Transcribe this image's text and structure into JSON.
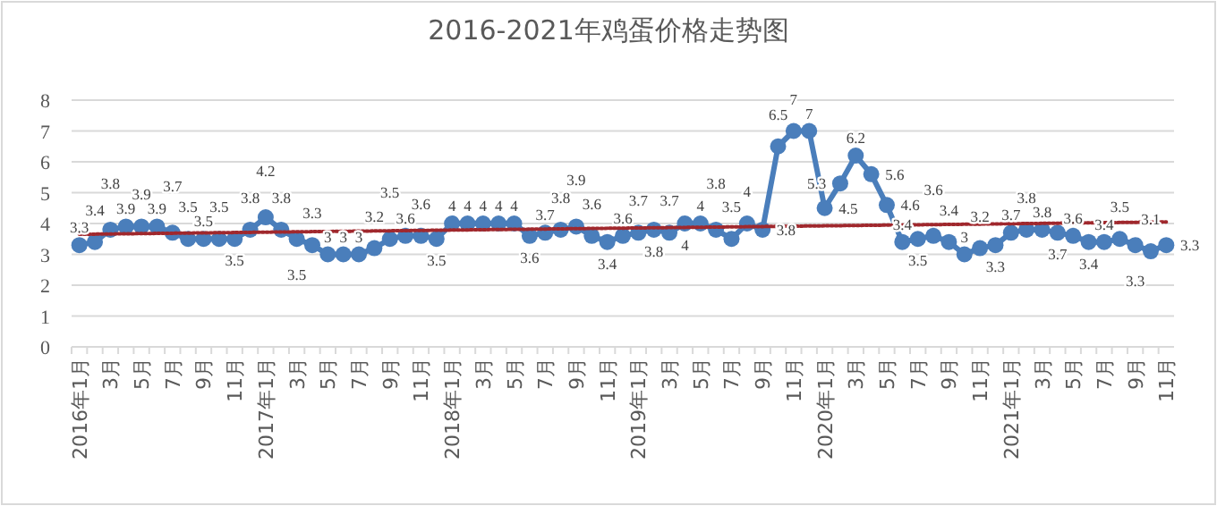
{
  "chart_data": {
    "type": "line",
    "title": "2016-2021年鸡蛋价格走势图",
    "categories": [
      "2016年1月",
      null,
      "3月",
      null,
      "5月",
      null,
      "7月",
      null,
      "9月",
      null,
      "11月",
      null,
      "2017年1月",
      null,
      "3月",
      null,
      "5月",
      null,
      "7月",
      null,
      "9月",
      null,
      "11月",
      null,
      "2018年1月",
      null,
      "3月",
      null,
      "5月",
      null,
      "7月",
      null,
      "9月",
      null,
      "11月",
      null,
      "2019年1月",
      null,
      "3月",
      null,
      "5月",
      null,
      "7月",
      null,
      "9月",
      null,
      "11月",
      null,
      "2020年1月",
      null,
      "3月",
      null,
      "5月",
      null,
      "7月",
      null,
      "9月",
      null,
      "11月",
      null,
      "2021年1月",
      null,
      "3月",
      null,
      "5月",
      null,
      "7月",
      null,
      "9月",
      null,
      "11月"
    ],
    "series": [
      {
        "color": "#4a7ebb",
        "marker": "circle",
        "data_labels": true,
        "values": [
          3.3,
          3.4,
          3.8,
          3.9,
          3.9,
          3.9,
          3.7,
          3.5,
          3.5,
          3.5,
          3.5,
          3.8,
          4.2,
          3.8,
          3.5,
          3.3,
          3.0,
          3.0,
          3.0,
          3.2,
          3.5,
          3.6,
          3.6,
          3.5,
          4,
          4,
          4,
          4,
          4,
          3.6,
          3.7,
          3.8,
          3.9,
          3.6,
          3.4,
          3.6,
          3.7,
          3.8,
          3.7,
          4,
          4,
          3.8,
          3.5,
          4,
          3.8,
          6.5,
          7,
          7,
          4.5,
          5.3,
          6.2,
          5.6,
          4.6,
          3.4,
          3.5,
          3.6,
          3.4,
          3.0,
          3.2,
          3.3,
          3.7,
          3.8,
          3.8,
          3.7,
          3.6,
          3.4,
          3.4,
          3.5,
          3.3,
          3.1,
          3.3
        ]
      },
      {
        "type": "line",
        "color": "#a0282d",
        "line_style": "dotted",
        "marker": "none",
        "values": [
          3.65,
          null,
          null,
          null,
          null,
          null,
          null,
          null,
          null,
          null,
          null,
          null,
          null,
          null,
          null,
          null,
          null,
          null,
          null,
          null,
          null,
          null,
          null,
          null,
          null,
          null,
          null,
          null,
          null,
          null,
          null,
          null,
          null,
          null,
          null,
          null,
          null,
          null,
          null,
          null,
          null,
          null,
          null,
          null,
          null,
          null,
          null,
          null,
          null,
          null,
          null,
          null,
          null,
          null,
          null,
          null,
          null,
          null,
          null,
          null,
          null,
          null,
          null,
          null,
          null,
          null,
          null,
          null,
          null,
          null,
          4.05
        ]
      }
    ],
    "ylim": [
      0,
      8
    ],
    "yticks": [
      0,
      1,
      2,
      3,
      4,
      5,
      6,
      7,
      8
    ],
    "grid": "y",
    "legend": false
  }
}
